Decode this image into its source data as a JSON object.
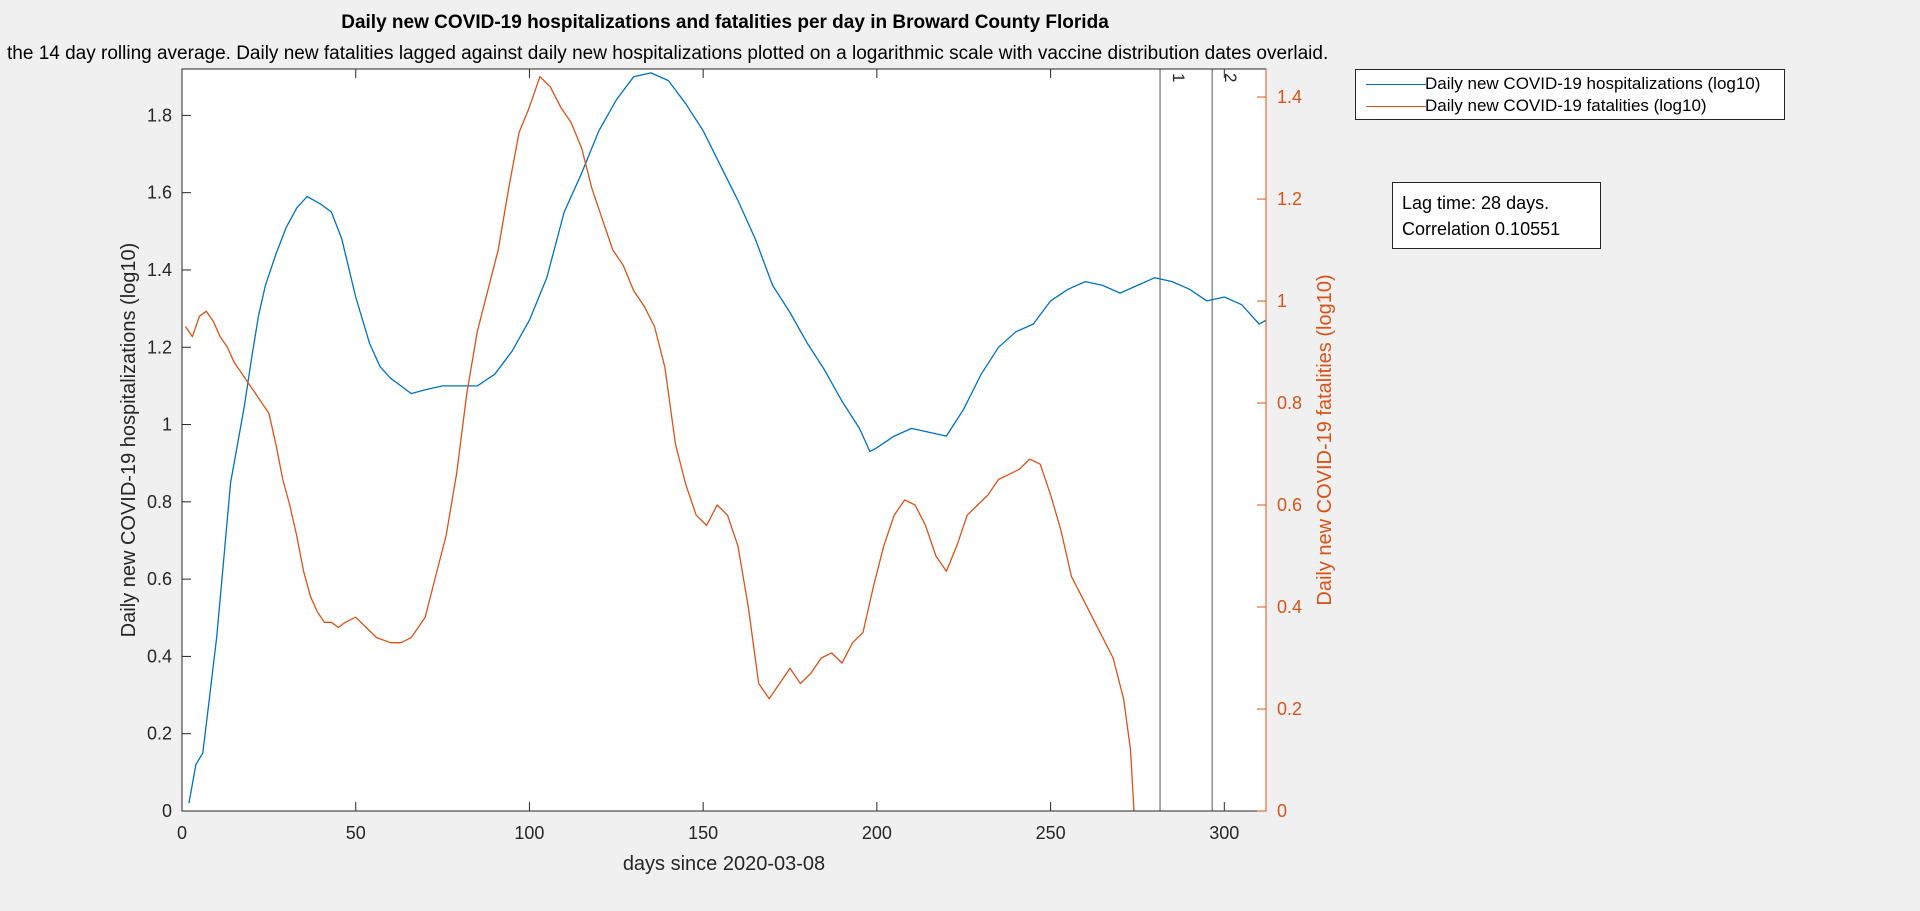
{
  "chart_data": {
    "type": "line",
    "title": "Daily new COVID-19 hospitalizations and fatalities per day in Broward County Florida",
    "subtitle": "the 14 day rolling average. Daily new fatalities lagged against daily new hospitalizations plotted on a logarithmic scale with vaccine distribution dates overlaid.",
    "xlabel": "days since 2020-03-08",
    "ylabel_left": "Daily new COVID-19 hospitalizations (log10)",
    "ylabel_right": "Daily new COVID-19 fatalities (log10)",
    "xlim": [
      0,
      312
    ],
    "ylim_left": [
      0,
      1.92
    ],
    "ylim_right": [
      0,
      1.455
    ],
    "x_ticks": [
      0,
      50,
      100,
      150,
      200,
      250,
      300
    ],
    "y_ticks_left": [
      0,
      0.2,
      0.4,
      0.6,
      0.8,
      1,
      1.2,
      1.4,
      1.6,
      1.8
    ],
    "y_ticks_right": [
      0,
      0.2,
      0.4,
      0.6,
      0.8,
      1,
      1.2,
      1.4
    ],
    "grid": false,
    "legend_position": "outside-top-right",
    "colors": {
      "hospitalizations": "#0072bd",
      "fatalities": "#d95319",
      "axis": "#262626",
      "vline": "#555555"
    },
    "vertical_markers": [
      {
        "x": 281.5,
        "label": "1"
      },
      {
        "x": 296.5,
        "label": "2"
      }
    ],
    "series": [
      {
        "name": "Daily new COVID-19 hospitalizations (log10)",
        "axis": "left",
        "x": [
          2,
          4,
          6,
          8,
          10,
          12,
          14,
          16,
          18,
          20,
          22,
          24,
          27,
          30,
          33,
          36,
          40,
          43,
          46,
          50,
          54,
          57,
          60,
          63,
          66,
          70,
          75,
          80,
          85,
          90,
          95,
          100,
          105,
          110,
          115,
          120,
          125,
          130,
          135,
          140,
          145,
          150,
          155,
          160,
          165,
          170,
          175,
          180,
          185,
          190,
          195,
          198,
          200,
          205,
          210,
          215,
          220,
          225,
          230,
          235,
          240,
          245,
          250,
          255,
          260,
          265,
          270,
          275,
          280,
          285,
          290,
          295,
          300,
          305,
          310,
          312
        ],
        "values": [
          0.02,
          0.12,
          0.15,
          0.3,
          0.45,
          0.65,
          0.85,
          0.95,
          1.05,
          1.17,
          1.28,
          1.36,
          1.44,
          1.51,
          1.56,
          1.59,
          1.57,
          1.55,
          1.48,
          1.33,
          1.21,
          1.15,
          1.12,
          1.1,
          1.08,
          1.09,
          1.1,
          1.1,
          1.1,
          1.13,
          1.19,
          1.27,
          1.38,
          1.55,
          1.65,
          1.76,
          1.84,
          1.9,
          1.91,
          1.89,
          1.83,
          1.76,
          1.67,
          1.58,
          1.48,
          1.36,
          1.29,
          1.21,
          1.14,
          1.06,
          0.99,
          0.93,
          0.94,
          0.97,
          0.99,
          0.98,
          0.97,
          1.04,
          1.13,
          1.2,
          1.24,
          1.26,
          1.32,
          1.35,
          1.37,
          1.36,
          1.34,
          1.36,
          1.38,
          1.37,
          1.35,
          1.32,
          1.33,
          1.31,
          1.26,
          1.27
        ]
      },
      {
        "name": "Daily new COVID-19 fatalities (log10)",
        "axis": "right",
        "x": [
          1,
          3,
          5,
          7,
          9,
          11,
          13,
          15,
          17,
          19,
          21,
          23,
          25,
          27,
          29,
          31,
          33,
          35,
          37,
          39,
          41,
          43,
          45,
          47,
          50,
          53,
          56,
          60,
          63,
          66,
          70,
          73,
          76,
          79,
          82,
          85,
          88,
          91,
          94,
          97,
          100,
          103,
          106,
          109,
          112,
          115,
          118,
          121,
          124,
          127,
          130,
          133,
          136,
          139,
          142,
          145,
          148,
          151,
          154,
          157,
          160,
          163,
          166,
          169,
          172,
          175,
          178,
          181,
          184,
          187,
          190,
          193,
          196,
          199,
          202,
          205,
          208,
          211,
          214,
          217,
          220,
          223,
          226,
          229,
          232,
          235,
          238,
          241,
          244,
          247,
          250,
          253,
          256,
          259,
          262,
          265,
          268,
          271,
          273,
          274
        ],
        "values": [
          0.95,
          0.93,
          0.97,
          0.98,
          0.96,
          0.93,
          0.91,
          0.88,
          0.86,
          0.84,
          0.82,
          0.8,
          0.78,
          0.72,
          0.65,
          0.6,
          0.54,
          0.47,
          0.42,
          0.39,
          0.37,
          0.37,
          0.36,
          0.37,
          0.38,
          0.36,
          0.34,
          0.33,
          0.33,
          0.34,
          0.38,
          0.46,
          0.54,
          0.66,
          0.82,
          0.94,
          1.02,
          1.1,
          1.22,
          1.33,
          1.38,
          1.44,
          1.42,
          1.38,
          1.35,
          1.3,
          1.22,
          1.16,
          1.1,
          1.07,
          1.02,
          0.99,
          0.95,
          0.87,
          0.72,
          0.64,
          0.58,
          0.56,
          0.6,
          0.58,
          0.52,
          0.4,
          0.25,
          0.22,
          0.25,
          0.28,
          0.25,
          0.27,
          0.3,
          0.31,
          0.29,
          0.33,
          0.35,
          0.44,
          0.52,
          0.58,
          0.61,
          0.6,
          0.56,
          0.5,
          0.47,
          0.52,
          0.58,
          0.6,
          0.62,
          0.65,
          0.66,
          0.67,
          0.69,
          0.68,
          0.62,
          0.55,
          0.46,
          0.42,
          0.38,
          0.34,
          0.3,
          0.22,
          0.12,
          0
        ]
      }
    ]
  },
  "annotation": {
    "lag_line": "Lag time: 28 days.",
    "correlation_line": "Correlation 0.10551"
  }
}
